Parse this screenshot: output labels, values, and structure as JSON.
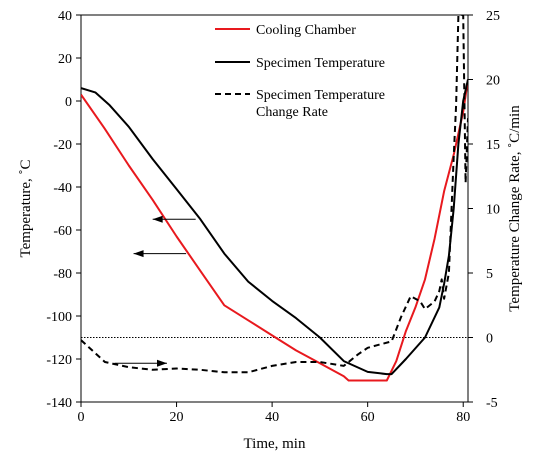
{
  "chart_data": {
    "type": "line",
    "xlabel": "Time, min",
    "ylabel_left": "Temperature, ˚C",
    "ylabel_right": "Temperature Change Rate, ˚C/min",
    "xlim": [
      0,
      81
    ],
    "ylim_left": [
      -140,
      40
    ],
    "ylim_right": [
      -5,
      25
    ],
    "x_ticks": [
      "0",
      "20",
      "40",
      "60",
      "80"
    ],
    "y_left_ticks": [
      "40",
      "20",
      "0",
      "-20",
      "-40",
      "-60",
      "-80",
      "-100",
      "-120",
      "-140"
    ],
    "y_right_ticks": [
      "25",
      "20",
      "15",
      "10",
      "5",
      "0",
      "-5"
    ],
    "grid": false,
    "legend_position": "top-right",
    "reference_line_right_axis": 0,
    "colors": {
      "cooling": "#e8191e",
      "specimen": "#000000",
      "rate": "#000000"
    },
    "legend": [
      {
        "label": "Cooling Chamber",
        "style": "solid",
        "color": "#e8191e"
      },
      {
        "label": "Specimen Temperature",
        "style": "solid",
        "color": "#000000"
      },
      {
        "label": "Specimen Temperature Change Rate",
        "style": "dashed",
        "color": "#000000"
      }
    ],
    "series": [
      {
        "name": "Cooling Chamber",
        "axis": "left",
        "x": [
          0,
          5,
          10,
          15,
          20,
          25,
          30,
          35,
          40,
          45,
          50,
          55,
          56,
          60,
          62,
          64,
          66,
          68,
          70,
          72,
          74,
          76,
          78,
          80,
          81
        ],
        "y": [
          3,
          -13,
          -30,
          -46,
          -63,
          -79,
          -95,
          -102,
          -109,
          -116,
          -122,
          -128,
          -130,
          -130,
          -130,
          -130,
          -121,
          -107,
          -96,
          -83,
          -64,
          -42,
          -25,
          -5,
          10
        ]
      },
      {
        "name": "Specimen Temperature",
        "axis": "left",
        "x": [
          0,
          3,
          6,
          10,
          15,
          20,
          25,
          30,
          35,
          40,
          45,
          50,
          55,
          60,
          64,
          65,
          68,
          72,
          75,
          76,
          77,
          78,
          79,
          80,
          81
        ],
        "y": [
          6,
          4,
          -2,
          -12,
          -27,
          -41,
          -55,
          -71,
          -84,
          -93,
          -101,
          -110,
          -121,
          -126,
          -127,
          -127,
          -120,
          -110,
          -96,
          -85,
          -72,
          -50,
          -20,
          0,
          10
        ]
      },
      {
        "name": "Specimen Temperature Change Rate",
        "axis": "right",
        "x": [
          0,
          5,
          10,
          15,
          20,
          25,
          30,
          35,
          40,
          45,
          50,
          55,
          58,
          60,
          62,
          65,
          67,
          69,
          71,
          72,
          74,
          75,
          75.5,
          76,
          77,
          77.5,
          78,
          78.5,
          79,
          80,
          80.5,
          81
        ],
        "y": [
          -0.2,
          -1.9,
          -2.3,
          -2.5,
          -2.4,
          -2.5,
          -2.7,
          -2.7,
          -2.2,
          -1.9,
          -1.9,
          -2.2,
          -1.3,
          -0.8,
          -0.6,
          -0.3,
          1.6,
          3.2,
          2.8,
          2.2,
          2.8,
          3.6,
          4.5,
          3.0,
          5.0,
          9.5,
          14.0,
          18.0,
          25,
          25,
          12,
          17
        ]
      }
    ],
    "annotations": [
      {
        "type": "arrow",
        "direction": "left",
        "points_to": "left axis",
        "from": [
          24,
          -55
        ],
        "to": [
          15,
          -55
        ]
      },
      {
        "type": "arrow",
        "direction": "left",
        "points_to": "left axis",
        "from": [
          22,
          -71
        ],
        "to": [
          11,
          -71
        ]
      },
      {
        "type": "arrow",
        "direction": "right",
        "points_to": "right axis",
        "from": [
          7,
          -122
        ],
        "to": [
          18,
          -122
        ]
      }
    ]
  }
}
